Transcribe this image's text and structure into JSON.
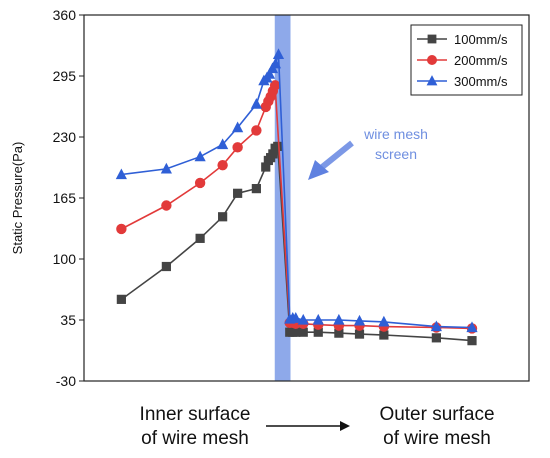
{
  "chart_data": {
    "type": "line",
    "title": "",
    "xlabel": "",
    "ylabel": "Static Pressure(Pa)",
    "ylim": [
      -30,
      360
    ],
    "yticks": [
      -30,
      35,
      100,
      165,
      230,
      295,
      360
    ],
    "x_unit": "position index (0 = inner surface, 100 = outer surface)",
    "xlim": [
      0,
      100
    ],
    "screen_band": [
      43.4,
      47.6
    ],
    "legend_position": "top-right",
    "colors": {
      "100mm/s": "#444444",
      "200mm/s": "#e23a3a",
      "300mm/s": "#2f5fd6"
    },
    "series": [
      {
        "name": "100mm/s",
        "marker": "square",
        "x": [
          2.5,
          14.5,
          23.5,
          29.5,
          33.5,
          38.5,
          41.0,
          41.7,
          42.3,
          42.9,
          43.5,
          44.2,
          47.4,
          48.2,
          49.0,
          51.0,
          55.0,
          60.5,
          66.0,
          72.5,
          86.5,
          96.0
        ],
        "y": [
          57,
          92,
          122,
          145,
          170,
          175,
          198,
          205,
          208,
          212,
          218,
          220,
          22,
          22,
          22,
          22,
          22,
          21,
          20,
          19,
          16,
          13
        ]
      },
      {
        "name": "200mm/s",
        "marker": "circle",
        "x": [
          2.5,
          14.5,
          23.5,
          29.5,
          33.5,
          38.5,
          41.0,
          41.7,
          42.3,
          42.9,
          43.5,
          47.4,
          48.2,
          49.0,
          51.0,
          55.0,
          60.5,
          66.0,
          72.5,
          86.5,
          96.0
        ],
        "y": [
          132,
          157,
          181,
          200,
          219,
          237,
          262,
          268,
          273,
          279,
          285,
          32,
          32,
          31,
          31,
          30,
          29,
          29,
          28,
          27,
          26
        ]
      },
      {
        "name": "300mm/s",
        "marker": "triangle",
        "x": [
          2.5,
          14.5,
          23.5,
          29.5,
          33.5,
          38.5,
          40.5,
          41.3,
          42.0,
          42.8,
          43.6,
          44.4,
          47.4,
          48.2,
          49.0,
          51.0,
          55.0,
          60.5,
          66.0,
          72.5,
          86.5,
          96.0
        ],
        "y": [
          190,
          196,
          209,
          222,
          240,
          265,
          290,
          293,
          297,
          303,
          308,
          318,
          36,
          37,
          37,
          35,
          35,
          35,
          34,
          33,
          28,
          27
        ]
      }
    ],
    "annotation": {
      "line1": "wire mesh",
      "line2": "screen"
    },
    "captions": {
      "inner_line1": "Inner surface",
      "inner_line2": "of wire mesh",
      "outer_line1": "Outer surface",
      "outer_line2": "of wire mesh"
    }
  }
}
